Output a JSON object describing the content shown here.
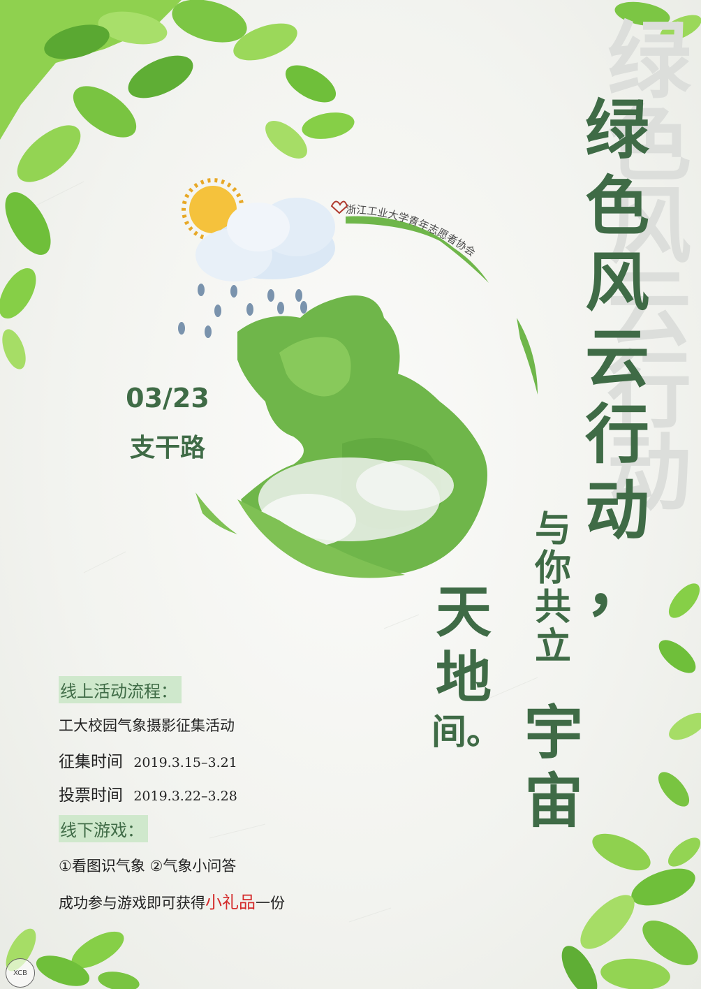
{
  "title": {
    "main": [
      "绿",
      "色",
      "风",
      "云",
      "行",
      "动",
      "，"
    ],
    "watermark": [
      "绿",
      "色",
      "风",
      "云",
      "行",
      "动"
    ]
  },
  "subtitle": {
    "line1": [
      "与",
      "你",
      "共",
      "立"
    ],
    "line2": [
      "宇",
      "宙"
    ],
    "line3": [
      "天",
      "地",
      "间。"
    ]
  },
  "organization": "浙江工业大学青年志愿者协会",
  "event": {
    "date": "03/23",
    "venue": "支干路"
  },
  "online": {
    "heading": "线上活动流程：",
    "activity": "工大校园气象摄影征集活动",
    "collect_label": "征集时间",
    "collect_range": "2019.3.15–3.21",
    "vote_label": "投票时间",
    "vote_range": "2019.3.22–3.28"
  },
  "offline": {
    "heading": "线下游戏：",
    "games": "①看图识气象  ②气象小问答",
    "reward_prefix": "成功参与游戏即可获得",
    "reward_gift": "小礼品",
    "reward_suffix": "一份"
  },
  "badge": "XCB",
  "colors": {
    "title_green": "#3f6b46",
    "leaf_green": "#6fbf3a",
    "highlight_bg": "#cfe8cc",
    "gift_red": "#d42a2a"
  },
  "icons": [
    "leaf-icon",
    "sun-icon",
    "cloud-icon",
    "raindrop-icon",
    "globe-icon"
  ]
}
